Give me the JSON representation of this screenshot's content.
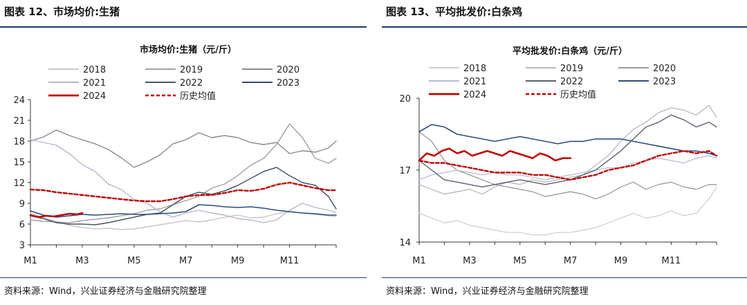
{
  "panels": [
    {
      "figure_title": "图表 12、市场均价:生猪",
      "source": "资料来源：Wind，兴业证券经济与金融研究院整理"
    },
    {
      "figure_title": "图表 13、平均批发价:白条鸡",
      "source": "资料来源：Wind，兴业证券经济与金融研究院整理"
    }
  ],
  "chart_data": [
    {
      "type": "line",
      "title": "市场均价:生猪（元/斤）",
      "xlabel": "",
      "ylabel": "",
      "ylim": [
        3,
        24
      ],
      "yticks": [
        "24",
        "21",
        "18",
        "15",
        "12",
        "9",
        "6",
        "3"
      ],
      "ytick_values": [
        24,
        21,
        18,
        15,
        12,
        9,
        6,
        3
      ],
      "xlim": [
        1,
        12.8
      ],
      "xticks": [
        "M1",
        "M3",
        "M5",
        "M7",
        "M9",
        "M11"
      ],
      "xtick_values": [
        1,
        3,
        5,
        7,
        9,
        11
      ],
      "legend_rows": [
        [
          "2018",
          "2019",
          "2020"
        ],
        [
          "2021",
          "2022",
          "2023"
        ],
        [
          "2024",
          "历史均值"
        ]
      ],
      "series": [
        {
          "name": "2018",
          "color": "#c8c8c8",
          "dash": false,
          "width": 1.4,
          "x": [
            1,
            1.5,
            2,
            2.5,
            3,
            3.5,
            4,
            4.5,
            5,
            5.5,
            6,
            6.5,
            7,
            7.5,
            8,
            8.5,
            9,
            9.5,
            10,
            10.5,
            11,
            11.5,
            12,
            12.5,
            12.8
          ],
          "y": [
            7.6,
            6.9,
            6.4,
            5.8,
            5.5,
            5.3,
            5.4,
            5.2,
            5.3,
            5.6,
            5.9,
            6.2,
            6.5,
            6.3,
            6.6,
            7.0,
            7.3,
            6.9,
            7.0,
            7.5,
            7.8,
            7.6,
            7.4,
            7.2,
            7.1
          ]
        },
        {
          "name": "2019",
          "color": "#a0a0a0",
          "dash": false,
          "width": 1.4,
          "x": [
            1,
            1.5,
            2,
            2.5,
            3,
            3.5,
            4,
            4.5,
            5,
            5.5,
            6,
            6.5,
            7,
            7.5,
            8,
            8.5,
            9,
            9.5,
            10,
            10.5,
            11,
            11.5,
            12,
            12.5,
            12.8
          ],
          "y": [
            6.6,
            6.4,
            6.3,
            6.2,
            6.5,
            6.7,
            6.9,
            7.2,
            7.5,
            8.0,
            8.2,
            8.8,
            9.4,
            10.0,
            11.2,
            11.8,
            13.0,
            14.5,
            15.5,
            17.5,
            20.5,
            18.5,
            15.5,
            14.8,
            15.5
          ]
        },
        {
          "name": "2020",
          "color": "#8a8a8a",
          "dash": false,
          "width": 1.4,
          "x": [
            1,
            1.5,
            2,
            2.5,
            3,
            3.5,
            4,
            4.5,
            5,
            5.5,
            6,
            6.5,
            7,
            7.5,
            8,
            8.5,
            9,
            9.5,
            10,
            10.5,
            11,
            11.5,
            12,
            12.5,
            12.8
          ],
          "y": [
            18.0,
            18.6,
            19.6,
            18.8,
            18.2,
            17.6,
            16.8,
            15.6,
            14.2,
            15.0,
            16.0,
            17.6,
            18.2,
            19.2,
            18.5,
            18.8,
            18.5,
            17.8,
            17.5,
            17.8,
            16.2,
            16.6,
            16.4,
            17.0,
            18.0
          ]
        },
        {
          "name": "2021",
          "color": "#b4b8cc",
          "dash": false,
          "width": 1.4,
          "x": [
            1,
            1.5,
            2,
            2.5,
            3,
            3.5,
            4,
            4.5,
            5,
            5.5,
            6,
            6.5,
            7,
            7.5,
            8,
            8.5,
            9,
            9.5,
            10,
            10.5,
            11,
            11.5,
            12,
            12.5,
            12.8
          ],
          "y": [
            18.2,
            17.8,
            17.4,
            16.2,
            14.6,
            13.6,
            11.8,
            11.0,
            9.6,
            9.0,
            7.8,
            7.0,
            7.6,
            8.0,
            7.6,
            7.3,
            6.8,
            6.6,
            6.2,
            6.6,
            8.0,
            9.0,
            8.4,
            8.0,
            7.7
          ]
        },
        {
          "name": "2022",
          "color": "#4a5568",
          "dash": false,
          "width": 1.5,
          "x": [
            1,
            1.5,
            2,
            2.5,
            3,
            3.5,
            4,
            4.5,
            5,
            5.5,
            6,
            6.5,
            7,
            7.5,
            8,
            8.5,
            9,
            9.5,
            10,
            10.5,
            11,
            11.5,
            12,
            12.5,
            12.8
          ],
          "y": [
            7.2,
            6.8,
            6.2,
            6.0,
            6.0,
            5.9,
            6.2,
            6.6,
            7.0,
            7.4,
            7.6,
            8.8,
            10.0,
            10.6,
            10.3,
            10.8,
            11.6,
            12.6,
            13.6,
            14.2,
            13.0,
            12.0,
            11.6,
            10.0,
            8.2
          ]
        },
        {
          "name": "2023",
          "color": "#2e4a80",
          "dash": false,
          "width": 1.6,
          "x": [
            1,
            1.5,
            2,
            2.5,
            3,
            3.5,
            4,
            4.5,
            5,
            5.5,
            6,
            6.5,
            7,
            7.5,
            8,
            8.5,
            9,
            9.5,
            10,
            10.5,
            11,
            11.5,
            12,
            12.5,
            12.8
          ],
          "y": [
            7.9,
            7.3,
            7.0,
            7.2,
            7.4,
            7.3,
            7.4,
            7.5,
            7.4,
            7.4,
            7.5,
            7.6,
            7.8,
            8.8,
            8.7,
            8.5,
            8.4,
            8.5,
            8.3,
            8.0,
            7.8,
            7.6,
            7.5,
            7.3,
            7.3
          ]
        },
        {
          "name": "2024",
          "color": "#c00000",
          "dash": false,
          "width": 2.6,
          "x": [
            1,
            1.3,
            1.6,
            1.9,
            2.2,
            2.5,
            2.8,
            3.0
          ],
          "y": [
            7.3,
            7.0,
            7.2,
            7.1,
            7.3,
            7.5,
            7.4,
            7.6
          ]
        },
        {
          "name": "历史均值",
          "color": "#c00000",
          "dash": true,
          "width": 2.4,
          "x": [
            1,
            1.5,
            2,
            2.5,
            3,
            3.5,
            4,
            4.5,
            5,
            5.5,
            6,
            6.5,
            7,
            7.5,
            8,
            8.5,
            9,
            9.5,
            10,
            10.5,
            11,
            11.5,
            12,
            12.5,
            12.8
          ],
          "y": [
            11.0,
            10.9,
            10.6,
            10.4,
            10.2,
            10.0,
            9.8,
            9.6,
            9.4,
            9.3,
            9.3,
            9.6,
            10.0,
            10.2,
            10.2,
            10.5,
            10.9,
            10.8,
            11.1,
            11.7,
            12.0,
            11.6,
            11.2,
            10.9,
            10.9
          ]
        }
      ]
    },
    {
      "type": "line",
      "title": "平均批发价:白条鸡（元/斤）",
      "xlabel": "",
      "ylabel": "",
      "ylim": [
        14,
        20
      ],
      "yticks": [
        "20",
        "17",
        "14"
      ],
      "ytick_values": [
        20,
        17,
        14
      ],
      "xlim": [
        1,
        12.8
      ],
      "xticks": [
        "M1",
        "M3",
        "M5",
        "M7",
        "M9",
        "M11"
      ],
      "xtick_values": [
        1,
        3,
        5,
        7,
        9,
        11
      ],
      "legend_rows": [
        [
          "2018",
          "2019",
          "2020"
        ],
        [
          "2021",
          "2022",
          "2023"
        ],
        [
          "2024",
          "历史均值"
        ]
      ],
      "series": [
        {
          "name": "2018",
          "color": "#d0d0d0",
          "dash": false,
          "width": 1.3,
          "x": [
            1,
            1.5,
            2,
            2.5,
            3,
            3.5,
            4,
            4.5,
            5,
            5.5,
            6,
            6.5,
            7,
            7.5,
            8,
            8.5,
            9,
            9.5,
            10,
            10.5,
            11,
            11.5,
            12,
            12.5,
            12.8
          ],
          "y": [
            15.2,
            15.0,
            14.8,
            14.9,
            14.7,
            14.6,
            14.5,
            14.4,
            14.4,
            14.3,
            14.3,
            14.4,
            14.4,
            14.5,
            14.6,
            14.8,
            15.0,
            15.2,
            15.0,
            15.1,
            15.3,
            15.1,
            15.2,
            15.8,
            16.3
          ]
        },
        {
          "name": "2019",
          "color": "#b8b8b8",
          "dash": false,
          "width": 1.3,
          "x": [
            1,
            1.5,
            2,
            2.5,
            3,
            3.5,
            4,
            4.5,
            5,
            5.5,
            6,
            6.5,
            7,
            7.5,
            8,
            8.5,
            9,
            9.5,
            10,
            10.5,
            11,
            11.5,
            12,
            12.5,
            12.8
          ],
          "y": [
            16.4,
            16.2,
            16.0,
            16.1,
            16.2,
            16.0,
            16.3,
            16.5,
            16.4,
            16.6,
            16.5,
            16.6,
            16.7,
            16.8,
            17.2,
            17.6,
            18.2,
            18.7,
            19.0,
            19.4,
            19.6,
            19.5,
            19.3,
            19.7,
            19.2
          ]
        },
        {
          "name": "2020",
          "color": "#9a9a9a",
          "dash": false,
          "width": 1.3,
          "x": [
            1,
            1.5,
            2,
            2.5,
            3,
            3.5,
            4,
            4.5,
            5,
            5.5,
            6,
            6.5,
            7,
            7.5,
            8,
            8.5,
            9,
            9.5,
            10,
            10.5,
            11,
            11.5,
            12,
            12.5,
            12.8
          ],
          "y": [
            18.6,
            18.2,
            17.4,
            17.0,
            16.8,
            16.6,
            16.4,
            16.3,
            16.2,
            16.1,
            15.9,
            16.0,
            16.1,
            16.0,
            15.8,
            16.0,
            16.3,
            16.5,
            16.2,
            16.4,
            16.5,
            16.3,
            16.2,
            16.4,
            16.4
          ]
        },
        {
          "name": "2021",
          "color": "#b8bcd6",
          "dash": false,
          "width": 1.3,
          "x": [
            1,
            1.5,
            2,
            2.5,
            3,
            3.5,
            4,
            4.5,
            5,
            5.5,
            6,
            6.5,
            7,
            7.5,
            8,
            8.5,
            9,
            9.5,
            10,
            10.5,
            11,
            11.5,
            12,
            12.5,
            12.8
          ],
          "y": [
            16.6,
            16.8,
            16.9,
            17.0,
            16.9,
            16.8,
            16.9,
            16.8,
            16.8,
            16.7,
            16.6,
            16.7,
            16.8,
            16.9,
            17.0,
            17.1,
            17.1,
            17.3,
            17.4,
            17.5,
            17.4,
            17.3,
            17.5,
            17.6,
            17.5
          ]
        },
        {
          "name": "2022",
          "color": "#5a6070",
          "dash": false,
          "width": 1.4,
          "x": [
            1,
            1.5,
            2,
            2.5,
            3,
            3.5,
            4,
            4.5,
            5,
            5.5,
            6,
            6.5,
            7,
            7.5,
            8,
            8.5,
            9,
            9.5,
            10,
            10.5,
            11,
            11.5,
            12,
            12.5,
            12.8
          ],
          "y": [
            17.4,
            17.0,
            16.6,
            16.5,
            16.4,
            16.3,
            16.4,
            16.5,
            16.6,
            16.5,
            16.4,
            16.5,
            16.6,
            16.8,
            17.0,
            17.4,
            17.8,
            18.3,
            18.8,
            19.0,
            19.3,
            19.1,
            18.8,
            19.0,
            18.8
          ]
        },
        {
          "name": "2023",
          "color": "#2e4a80",
          "dash": false,
          "width": 1.6,
          "x": [
            1,
            1.5,
            2,
            2.5,
            3,
            3.5,
            4,
            4.5,
            5,
            5.5,
            6,
            6.5,
            7,
            7.5,
            8,
            8.5,
            9,
            9.5,
            10,
            10.5,
            11,
            11.5,
            12,
            12.5,
            12.8
          ],
          "y": [
            18.6,
            18.9,
            18.8,
            18.5,
            18.4,
            18.3,
            18.2,
            18.3,
            18.4,
            18.3,
            18.2,
            18.1,
            18.2,
            18.2,
            18.3,
            18.3,
            18.3,
            18.2,
            18.1,
            18.0,
            17.9,
            17.8,
            17.8,
            17.7,
            17.6
          ]
        },
        {
          "name": "2024",
          "color": "#c00000",
          "dash": false,
          "width": 2.6,
          "x": [
            1,
            1.3,
            1.6,
            1.9,
            2.2,
            2.5,
            2.8,
            3.1,
            3.4,
            3.7,
            4.0,
            4.3,
            4.6,
            4.9,
            5.2,
            5.5,
            5.8,
            6.1,
            6.4,
            6.7,
            7.0
          ],
          "y": [
            17.4,
            17.7,
            17.6,
            17.8,
            17.9,
            17.7,
            17.8,
            17.6,
            17.7,
            17.8,
            17.7,
            17.6,
            17.8,
            17.7,
            17.6,
            17.5,
            17.7,
            17.6,
            17.4,
            17.5,
            17.5
          ]
        },
        {
          "name": "历史均值",
          "color": "#c00000",
          "dash": true,
          "width": 2.4,
          "x": [
            1,
            1.5,
            2,
            2.5,
            3,
            3.5,
            4,
            4.5,
            5,
            5.5,
            6,
            6.5,
            7,
            7.5,
            8,
            8.5,
            9,
            9.5,
            10,
            10.5,
            11,
            11.5,
            12,
            12.5,
            12.8
          ],
          "y": [
            17.4,
            17.3,
            17.3,
            17.2,
            17.1,
            17.0,
            16.9,
            16.9,
            16.9,
            16.8,
            16.8,
            16.7,
            16.6,
            16.7,
            16.8,
            17.0,
            17.1,
            17.2,
            17.4,
            17.6,
            17.7,
            17.8,
            17.7,
            17.8,
            17.6
          ]
        }
      ]
    }
  ]
}
